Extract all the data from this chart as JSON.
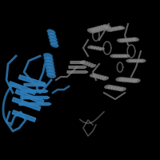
{
  "background_color": "#000000",
  "blue_color": "#2e7bb5",
  "gray_color": "#888888",
  "gray_dark_color": "#555555",
  "blue_dark_color": "#1a5a8a",
  "figure_size": [
    2.0,
    2.0
  ],
  "dpi": 100
}
